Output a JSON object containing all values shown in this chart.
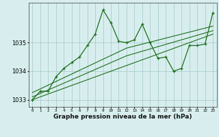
{
  "xlabel": "Graphe pression niveau de la mer (hPa)",
  "background_color": "#d8eeee",
  "grid_color": "#aacccc",
  "line_color": "#1a6e1a",
  "x_values": [
    0,
    1,
    2,
    3,
    4,
    5,
    6,
    7,
    8,
    9,
    10,
    11,
    12,
    13,
    14,
    15,
    16,
    17,
    18,
    19,
    20,
    21,
    22,
    23
  ],
  "series_main": [
    1033.0,
    1033.3,
    1033.3,
    1033.8,
    1034.1,
    1034.3,
    1034.5,
    1034.9,
    1035.3,
    1036.15,
    1035.7,
    1035.05,
    1035.0,
    1035.1,
    1035.65,
    1035.0,
    1034.45,
    1034.5,
    1034.0,
    1034.1,
    1034.9,
    1034.9,
    1034.95,
    1036.05
  ],
  "series_line2": [
    1033.25,
    1033.38,
    1033.51,
    1033.64,
    1033.77,
    1033.9,
    1034.03,
    1034.16,
    1034.29,
    1034.42,
    1034.55,
    1034.68,
    1034.81,
    1034.88,
    1034.95,
    1035.02,
    1035.09,
    1035.16,
    1035.23,
    1035.3,
    1035.37,
    1035.44,
    1035.51,
    1035.58
  ],
  "series_line3": [
    1033.1,
    1033.22,
    1033.34,
    1033.46,
    1033.58,
    1033.7,
    1033.82,
    1033.94,
    1034.06,
    1034.18,
    1034.3,
    1034.42,
    1034.54,
    1034.62,
    1034.7,
    1034.78,
    1034.86,
    1034.94,
    1035.02,
    1035.1,
    1035.18,
    1035.26,
    1035.34,
    1035.42
  ],
  "series_line4": [
    1033.0,
    1033.1,
    1033.2,
    1033.3,
    1033.4,
    1033.5,
    1033.6,
    1033.7,
    1033.8,
    1033.9,
    1034.0,
    1034.1,
    1034.2,
    1034.3,
    1034.4,
    1034.5,
    1034.6,
    1034.7,
    1034.8,
    1034.9,
    1035.0,
    1035.1,
    1035.2,
    1035.3
  ],
  "ylim": [
    1032.75,
    1036.4
  ],
  "yticks": [
    1033,
    1034,
    1035
  ],
  "xlim": [
    -0.5,
    23.5
  ]
}
